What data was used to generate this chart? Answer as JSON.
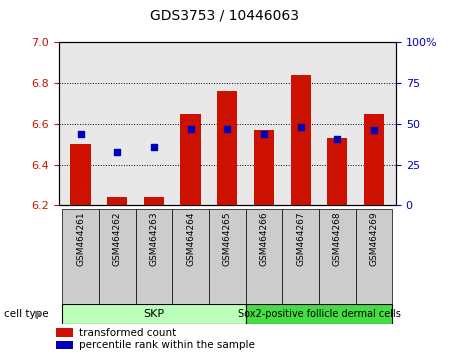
{
  "title": "GDS3753 / 10446063",
  "samples": [
    "GSM464261",
    "GSM464262",
    "GSM464263",
    "GSM464264",
    "GSM464265",
    "GSM464266",
    "GSM464267",
    "GSM464268",
    "GSM464269"
  ],
  "transformed_count": [
    6.5,
    6.24,
    6.24,
    6.65,
    6.76,
    6.57,
    6.84,
    6.53,
    6.65
  ],
  "percentile_rank": [
    44,
    33,
    36,
    47,
    47,
    44,
    48,
    41,
    46
  ],
  "ylim_left": [
    6.2,
    7.0
  ],
  "ylim_right": [
    0,
    100
  ],
  "yticks_left": [
    6.2,
    6.4,
    6.6,
    6.8,
    7.0
  ],
  "yticks_right": [
    0,
    25,
    50,
    75,
    100
  ],
  "bar_color": "#cc1100",
  "dot_color": "#0000bb",
  "bar_bottom": 6.2,
  "cell_types": [
    {
      "label": "SKP",
      "n_samples": 5,
      "color": "#bbffbb"
    },
    {
      "label": "Sox2-positive follicle dermal cells",
      "n_samples": 4,
      "color": "#44dd44"
    }
  ],
  "legend_items": [
    {
      "label": "transformed count",
      "color": "#cc1100"
    },
    {
      "label": "percentile rank within the sample",
      "color": "#0000bb"
    }
  ],
  "cell_type_label": "cell type",
  "tick_label_color_left": "#cc1100",
  "tick_label_color_right": "#0000bb",
  "plot_bg": "#e8e8e8",
  "xticklabel_bg": "#cccccc"
}
